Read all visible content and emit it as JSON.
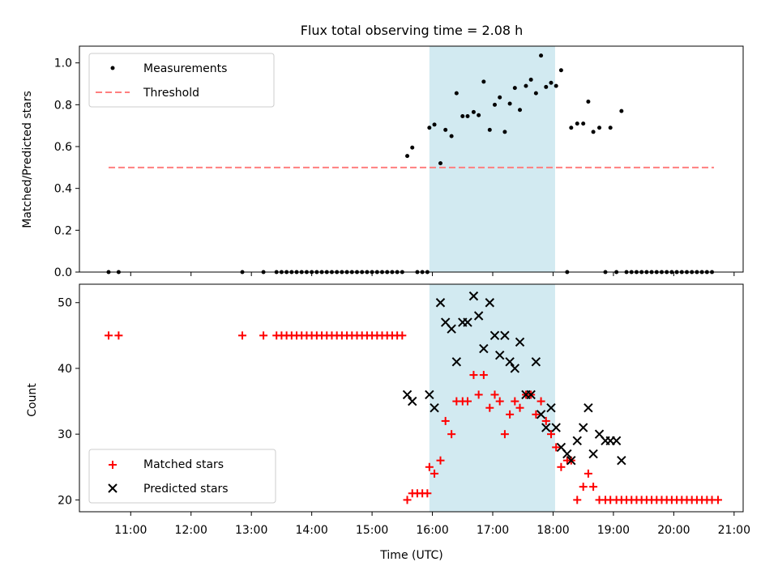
{
  "chart_data": [
    {
      "type": "scatter",
      "title": "Flux total observing time = 2.08 h",
      "xlabel": "",
      "ylabel": "Matched/Predicted stars",
      "ylim": [
        0,
        1.08
      ],
      "yticks": [
        "0.0",
        "0.2",
        "0.4",
        "0.6",
        "0.8",
        "1.0"
      ],
      "ytick_values": [
        0,
        0.2,
        0.4,
        0.6,
        0.8,
        1.0
      ],
      "legend_position": "top-left",
      "highlight_span": [
        "15:57",
        "18:02"
      ],
      "threshold": {
        "name": "Threshold",
        "value": 0.5,
        "x_range": [
          "10:38",
          "20:40"
        ],
        "color": "#ff7f7f",
        "style": "dashed"
      },
      "series": [
        {
          "name": "Measurements",
          "marker": "dot",
          "color": "#000000",
          "points": [
            [
              "10:38",
              0
            ],
            [
              "10:48",
              0
            ],
            [
              "12:51",
              0
            ],
            [
              "13:12",
              0
            ],
            [
              "13:25",
              0
            ],
            [
              "13:30",
              0
            ],
            [
              "13:35",
              0
            ],
            [
              "13:40",
              0
            ],
            [
              "13:45",
              0
            ],
            [
              "13:50",
              0
            ],
            [
              "13:55",
              0
            ],
            [
              "14:00",
              0
            ],
            [
              "14:05",
              0
            ],
            [
              "14:10",
              0
            ],
            [
              "14:15",
              0
            ],
            [
              "14:20",
              0
            ],
            [
              "14:25",
              0
            ],
            [
              "14:30",
              0
            ],
            [
              "14:35",
              0
            ],
            [
              "14:40",
              0
            ],
            [
              "14:45",
              0
            ],
            [
              "14:50",
              0
            ],
            [
              "14:55",
              0
            ],
            [
              "15:00",
              0
            ],
            [
              "15:05",
              0
            ],
            [
              "15:10",
              0
            ],
            [
              "15:15",
              0
            ],
            [
              "15:20",
              0
            ],
            [
              "15:25",
              0
            ],
            [
              "15:30",
              0
            ],
            [
              "15:35",
              0.555
            ],
            [
              "15:40",
              0.595
            ],
            [
              "15:45",
              0
            ],
            [
              "15:50",
              0
            ],
            [
              "15:55",
              0
            ],
            [
              "15:57",
              0.69
            ],
            [
              "16:02",
              0.705
            ],
            [
              "16:08",
              0.52
            ],
            [
              "16:13",
              0.68
            ],
            [
              "16:19",
              0.65
            ],
            [
              "16:24",
              0.855
            ],
            [
              "16:30",
              0.745
            ],
            [
              "16:35",
              0.745
            ],
            [
              "16:41",
              0.765
            ],
            [
              "16:46",
              0.75
            ],
            [
              "16:51",
              0.91
            ],
            [
              "16:57",
              0.68
            ],
            [
              "17:02",
              0.8
            ],
            [
              "17:07",
              0.835
            ],
            [
              "17:12",
              0.67
            ],
            [
              "17:17",
              0.805
            ],
            [
              "17:22",
              0.88
            ],
            [
              "17:27",
              0.775
            ],
            [
              "17:33",
              0.89
            ],
            [
              "17:38",
              0.92
            ],
            [
              "17:43",
              0.855
            ],
            [
              "17:48",
              1.035
            ],
            [
              "17:53",
              0.885
            ],
            [
              "17:58",
              0.905
            ],
            [
              "18:03",
              0.89
            ],
            [
              "18:08",
              0.965
            ],
            [
              "18:14",
              0
            ],
            [
              "18:18",
              0.69
            ],
            [
              "18:24",
              0.71
            ],
            [
              "18:30",
              0.71
            ],
            [
              "18:35",
              0.815
            ],
            [
              "18:40",
              0.67
            ],
            [
              "18:46",
              0.69
            ],
            [
              "18:52",
              0
            ],
            [
              "18:57",
              0.69
            ],
            [
              "19:03",
              0
            ],
            [
              "19:08",
              0.77
            ],
            [
              "19:13",
              0
            ],
            [
              "19:18",
              0
            ],
            [
              "19:23",
              0
            ],
            [
              "19:28",
              0
            ],
            [
              "19:33",
              0
            ],
            [
              "19:38",
              0
            ],
            [
              "19:43",
              0
            ],
            [
              "19:48",
              0
            ],
            [
              "19:53",
              0
            ],
            [
              "19:58",
              0
            ],
            [
              "20:03",
              0
            ],
            [
              "20:08",
              0
            ],
            [
              "20:13",
              0
            ],
            [
              "20:18",
              0
            ],
            [
              "20:23",
              0
            ],
            [
              "20:28",
              0
            ],
            [
              "20:33",
              0
            ],
            [
              "20:38",
              0
            ]
          ]
        }
      ]
    },
    {
      "type": "scatter",
      "title": "",
      "xlabel": "Time (UTC)",
      "ylabel": "Count",
      "ylim": [
        18.2,
        52.8
      ],
      "yticks": [
        "20",
        "30",
        "40",
        "50"
      ],
      "ytick_values": [
        20,
        30,
        40,
        50
      ],
      "xlim": [
        "10:09",
        "21:09"
      ],
      "xticks": [
        "11:00",
        "12:00",
        "13:00",
        "14:00",
        "15:00",
        "16:00",
        "17:00",
        "18:00",
        "19:00",
        "20:00",
        "21:00"
      ],
      "legend_position": "bottom-left",
      "highlight_span": [
        "15:57",
        "18:02"
      ],
      "series": [
        {
          "name": "Matched stars",
          "marker": "plus",
          "color": "#ff0000",
          "points": [
            [
              "10:38",
              45
            ],
            [
              "10:48",
              45
            ],
            [
              "12:51",
              45
            ],
            [
              "13:12",
              45
            ],
            [
              "13:25",
              45
            ],
            [
              "13:30",
              45
            ],
            [
              "13:35",
              45
            ],
            [
              "13:40",
              45
            ],
            [
              "13:45",
              45
            ],
            [
              "13:50",
              45
            ],
            [
              "13:55",
              45
            ],
            [
              "14:00",
              45
            ],
            [
              "14:05",
              45
            ],
            [
              "14:10",
              45
            ],
            [
              "14:15",
              45
            ],
            [
              "14:20",
              45
            ],
            [
              "14:25",
              45
            ],
            [
              "14:30",
              45
            ],
            [
              "14:35",
              45
            ],
            [
              "14:40",
              45
            ],
            [
              "14:45",
              45
            ],
            [
              "14:50",
              45
            ],
            [
              "14:55",
              45
            ],
            [
              "15:00",
              45
            ],
            [
              "15:05",
              45
            ],
            [
              "15:10",
              45
            ],
            [
              "15:15",
              45
            ],
            [
              "15:20",
              45
            ],
            [
              "15:25",
              45
            ],
            [
              "15:30",
              45
            ],
            [
              "15:35",
              20
            ],
            [
              "15:40",
              21
            ],
            [
              "15:45",
              21
            ],
            [
              "15:50",
              21
            ],
            [
              "15:55",
              21
            ],
            [
              "15:57",
              25
            ],
            [
              "16:02",
              24
            ],
            [
              "16:08",
              26
            ],
            [
              "16:13",
              32
            ],
            [
              "16:19",
              30
            ],
            [
              "16:24",
              35
            ],
            [
              "16:30",
              35
            ],
            [
              "16:35",
              35
            ],
            [
              "16:41",
              39
            ],
            [
              "16:46",
              36
            ],
            [
              "16:51",
              39
            ],
            [
              "16:57",
              34
            ],
            [
              "17:02",
              36
            ],
            [
              "17:07",
              35
            ],
            [
              "17:12",
              30
            ],
            [
              "17:17",
              33
            ],
            [
              "17:22",
              35
            ],
            [
              "17:27",
              34
            ],
            [
              "17:33",
              36
            ],
            [
              "17:38",
              36
            ],
            [
              "17:43",
              33
            ],
            [
              "17:48",
              35
            ],
            [
              "17:53",
              32
            ],
            [
              "17:58",
              30
            ],
            [
              "18:03",
              28
            ],
            [
              "18:08",
              25
            ],
            [
              "18:14",
              26
            ],
            [
              "18:18",
              26
            ],
            [
              "18:24",
              20
            ],
            [
              "18:30",
              22
            ],
            [
              "18:35",
              24
            ],
            [
              "18:40",
              22
            ],
            [
              "18:46",
              20
            ],
            [
              "18:52",
              20
            ],
            [
              "18:57",
              20
            ],
            [
              "19:03",
              20
            ],
            [
              "19:08",
              20
            ],
            [
              "19:13",
              20
            ],
            [
              "19:18",
              20
            ],
            [
              "19:23",
              20
            ],
            [
              "19:28",
              20
            ],
            [
              "19:33",
              20
            ],
            [
              "19:38",
              20
            ],
            [
              "19:43",
              20
            ],
            [
              "19:48",
              20
            ],
            [
              "19:53",
              20
            ],
            [
              "19:58",
              20
            ],
            [
              "20:03",
              20
            ],
            [
              "20:08",
              20
            ],
            [
              "20:13",
              20
            ],
            [
              "20:18",
              20
            ],
            [
              "20:23",
              20
            ],
            [
              "20:28",
              20
            ],
            [
              "20:33",
              20
            ],
            [
              "20:38",
              20
            ],
            [
              "20:44",
              20
            ]
          ]
        },
        {
          "name": "Predicted stars",
          "marker": "x",
          "color": "#000000",
          "points": [
            [
              "15:35",
              36
            ],
            [
              "15:40",
              35
            ],
            [
              "15:57",
              36
            ],
            [
              "16:02",
              34
            ],
            [
              "16:08",
              50
            ],
            [
              "16:13",
              47
            ],
            [
              "16:19",
              46
            ],
            [
              "16:24",
              41
            ],
            [
              "16:30",
              47
            ],
            [
              "16:35",
              47
            ],
            [
              "16:41",
              51
            ],
            [
              "16:46",
              48
            ],
            [
              "16:51",
              43
            ],
            [
              "16:57",
              50
            ],
            [
              "17:02",
              45
            ],
            [
              "17:07",
              42
            ],
            [
              "17:12",
              45
            ],
            [
              "17:17",
              41
            ],
            [
              "17:22",
              40
            ],
            [
              "17:27",
              44
            ],
            [
              "17:33",
              36
            ],
            [
              "17:38",
              36
            ],
            [
              "17:43",
              41
            ],
            [
              "17:48",
              33
            ],
            [
              "17:53",
              31
            ],
            [
              "17:58",
              34
            ],
            [
              "18:03",
              31
            ],
            [
              "18:08",
              28
            ],
            [
              "18:14",
              27
            ],
            [
              "18:18",
              26
            ],
            [
              "18:24",
              29
            ],
            [
              "18:30",
              31
            ],
            [
              "18:35",
              34
            ],
            [
              "18:40",
              27
            ],
            [
              "18:46",
              30
            ],
            [
              "18:52",
              29
            ],
            [
              "18:57",
              29
            ],
            [
              "19:03",
              29
            ],
            [
              "19:08",
              26
            ]
          ]
        }
      ]
    }
  ]
}
